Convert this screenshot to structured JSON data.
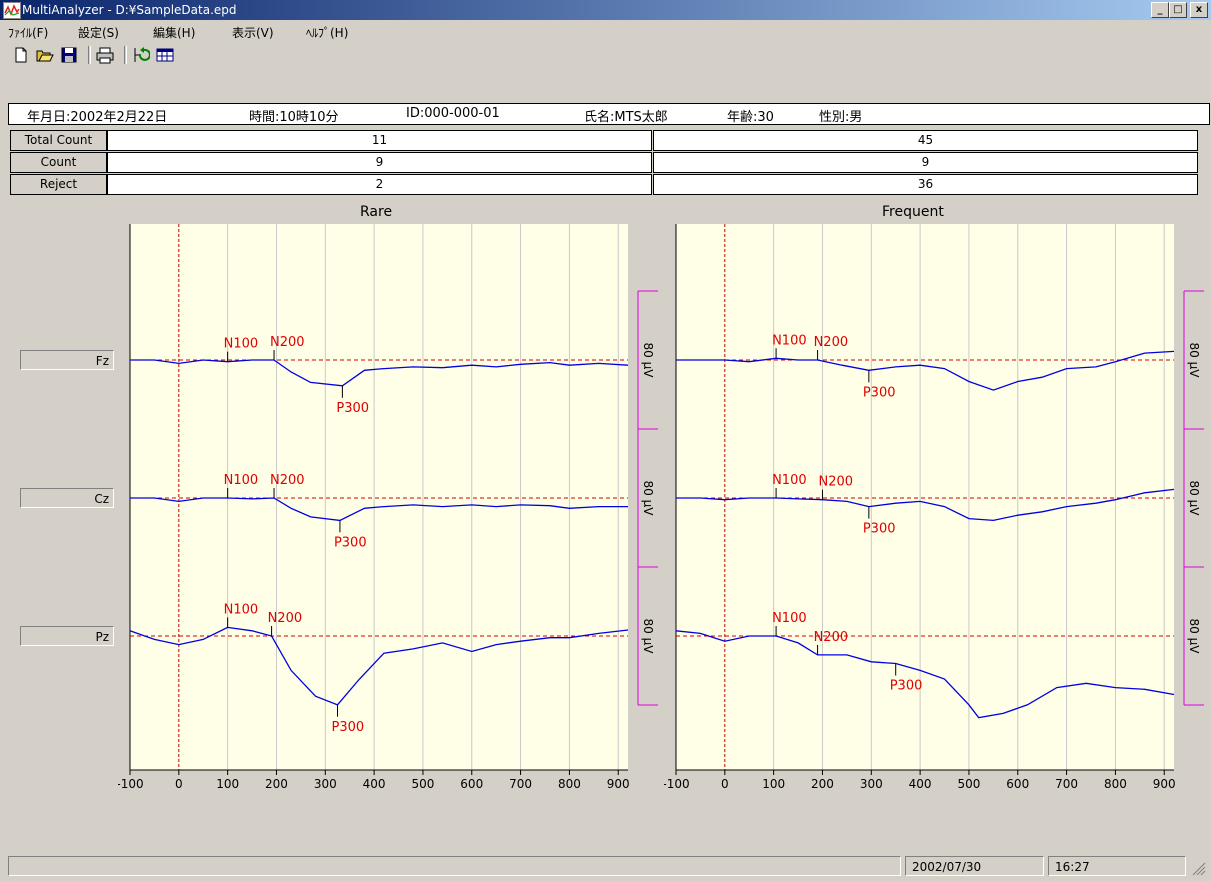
{
  "window": {
    "title": "MultiAnalyzer - D:¥SampleData.epd",
    "buttons": [
      "_",
      "□",
      "x"
    ]
  },
  "menu": [
    "ﾌｧｲﾙ(F)",
    "設定(S)",
    "編集(H)",
    "表示(V)",
    "ﾍﾙﾌﾟ(H)"
  ],
  "toolbar": {
    "icons": [
      "new-file-icon",
      "open-folder-icon",
      "save-icon",
      "print-icon",
      "refresh-icon",
      "table-icon"
    ]
  },
  "info": {
    "date": "年月日:2002年2月22日",
    "time": "時間:10時10分",
    "id": "ID:000-000-01",
    "name": "氏名:MTS太郎",
    "age": "年齢:30",
    "sex": "性別:男"
  },
  "counts": {
    "rows": [
      {
        "label": "Total Count",
        "rare": "11",
        "frequent": "45"
      },
      {
        "label": "Count",
        "rare": "9",
        "frequent": "9"
      },
      {
        "label": "Reject",
        "rare": "2",
        "frequent": "36"
      }
    ]
  },
  "channels": [
    "Fz",
    "Cz",
    "Pz"
  ],
  "scale_label": "80 μV",
  "status": {
    "date": "2002/07/30",
    "time": "16:27"
  },
  "chart_data": [
    {
      "type": "line",
      "title": "Rare",
      "x_ticks": [
        -100,
        0,
        100,
        200,
        300,
        400,
        500,
        600,
        700,
        800,
        900
      ],
      "xlim": [
        -100,
        920
      ],
      "channels": [
        {
          "name": "Fz",
          "peaks": [
            {
              "label": "N100",
              "x": 100
            },
            {
              "label": "N200",
              "x": 195
            },
            {
              "label": "P300",
              "x": 335
            }
          ],
          "trace": [
            [
              -100,
              0
            ],
            [
              -50,
              0
            ],
            [
              0,
              -4
            ],
            [
              50,
              0
            ],
            [
              100,
              -2
            ],
            [
              150,
              0
            ],
            [
              195,
              0
            ],
            [
              230,
              -14
            ],
            [
              270,
              -26
            ],
            [
              335,
              -30
            ],
            [
              380,
              -12
            ],
            [
              420,
              -10
            ],
            [
              480,
              -8
            ],
            [
              540,
              -9
            ],
            [
              600,
              -6
            ],
            [
              650,
              -8
            ],
            [
              700,
              -5
            ],
            [
              760,
              -3
            ],
            [
              800,
              -6
            ],
            [
              860,
              -4
            ],
            [
              920,
              -6
            ]
          ]
        },
        {
          "name": "Cz",
          "peaks": [
            {
              "label": "N100",
              "x": 100
            },
            {
              "label": "N200",
              "x": 195
            },
            {
              "label": "P300",
              "x": 330
            }
          ],
          "trace": [
            [
              -100,
              0
            ],
            [
              -50,
              0
            ],
            [
              0,
              -4
            ],
            [
              50,
              0
            ],
            [
              100,
              0
            ],
            [
              150,
              -1
            ],
            [
              195,
              0
            ],
            [
              230,
              -12
            ],
            [
              270,
              -22
            ],
            [
              330,
              -26
            ],
            [
              380,
              -12
            ],
            [
              420,
              -10
            ],
            [
              480,
              -8
            ],
            [
              540,
              -10
            ],
            [
              600,
              -8
            ],
            [
              650,
              -10
            ],
            [
              700,
              -8
            ],
            [
              760,
              -9
            ],
            [
              800,
              -12
            ],
            [
              860,
              -10
            ],
            [
              920,
              -10
            ]
          ]
        },
        {
          "name": "Pz",
          "peaks": [
            {
              "label": "N100",
              "x": 100
            },
            {
              "label": "N200",
              "x": 190
            },
            {
              "label": "P300",
              "x": 325
            }
          ],
          "trace": [
            [
              -100,
              6
            ],
            [
              -50,
              -4
            ],
            [
              0,
              -10
            ],
            [
              50,
              -4
            ],
            [
              100,
              10
            ],
            [
              150,
              6
            ],
            [
              190,
              0
            ],
            [
              230,
              -40
            ],
            [
              280,
              -70
            ],
            [
              325,
              -80
            ],
            [
              370,
              -50
            ],
            [
              420,
              -20
            ],
            [
              480,
              -15
            ],
            [
              540,
              -8
            ],
            [
              600,
              -18
            ],
            [
              650,
              -10
            ],
            [
              700,
              -6
            ],
            [
              760,
              -2
            ],
            [
              800,
              -2
            ],
            [
              860,
              3
            ],
            [
              920,
              7
            ]
          ]
        }
      ]
    },
    {
      "type": "line",
      "title": "Frequent",
      "x_ticks": [
        -100,
        0,
        100,
        200,
        300,
        400,
        500,
        600,
        700,
        800,
        900
      ],
      "xlim": [
        -100,
        920
      ],
      "channels": [
        {
          "name": "Fz",
          "peaks": [
            {
              "label": "N100",
              "x": 105
            },
            {
              "label": "N200",
              "x": 190
            },
            {
              "label": "P300",
              "x": 295
            }
          ],
          "trace": [
            [
              -100,
              0
            ],
            [
              -50,
              0
            ],
            [
              0,
              0
            ],
            [
              50,
              -2
            ],
            [
              105,
              2
            ],
            [
              150,
              0
            ],
            [
              190,
              0
            ],
            [
              240,
              -6
            ],
            [
              295,
              -12
            ],
            [
              350,
              -8
            ],
            [
              400,
              -6
            ],
            [
              450,
              -10
            ],
            [
              500,
              -25
            ],
            [
              550,
              -35
            ],
            [
              600,
              -25
            ],
            [
              650,
              -20
            ],
            [
              700,
              -10
            ],
            [
              760,
              -8
            ],
            [
              800,
              -2
            ],
            [
              860,
              8
            ],
            [
              920,
              10
            ]
          ]
        },
        {
          "name": "Cz",
          "peaks": [
            {
              "label": "N100",
              "x": 105
            },
            {
              "label": "N200",
              "x": 200
            },
            {
              "label": "P300",
              "x": 295
            }
          ],
          "trace": [
            [
              -100,
              0
            ],
            [
              -50,
              0
            ],
            [
              0,
              -2
            ],
            [
              50,
              0
            ],
            [
              105,
              0
            ],
            [
              150,
              -1
            ],
            [
              200,
              -2
            ],
            [
              250,
              -4
            ],
            [
              295,
              -10
            ],
            [
              350,
              -6
            ],
            [
              400,
              -4
            ],
            [
              450,
              -10
            ],
            [
              500,
              -24
            ],
            [
              550,
              -26
            ],
            [
              600,
              -20
            ],
            [
              650,
              -16
            ],
            [
              700,
              -10
            ],
            [
              760,
              -6
            ],
            [
              800,
              -2
            ],
            [
              860,
              6
            ],
            [
              920,
              10
            ]
          ]
        },
        {
          "name": "Pz",
          "peaks": [
            {
              "label": "N100",
              "x": 105
            },
            {
              "label": "N200",
              "x": 190
            },
            {
              "label": "P300",
              "x": 350
            }
          ],
          "trace": [
            [
              -100,
              6
            ],
            [
              -50,
              3
            ],
            [
              0,
              -6
            ],
            [
              50,
              0
            ],
            [
              105,
              0
            ],
            [
              150,
              -8
            ],
            [
              190,
              -22
            ],
            [
              250,
              -22
            ],
            [
              300,
              -30
            ],
            [
              350,
              -32
            ],
            [
              400,
              -40
            ],
            [
              450,
              -50
            ],
            [
              500,
              -80
            ],
            [
              520,
              -95
            ],
            [
              570,
              -90
            ],
            [
              620,
              -80
            ],
            [
              680,
              -60
            ],
            [
              740,
              -55
            ],
            [
              800,
              -60
            ],
            [
              860,
              -62
            ],
            [
              920,
              -68
            ]
          ]
        }
      ]
    }
  ]
}
